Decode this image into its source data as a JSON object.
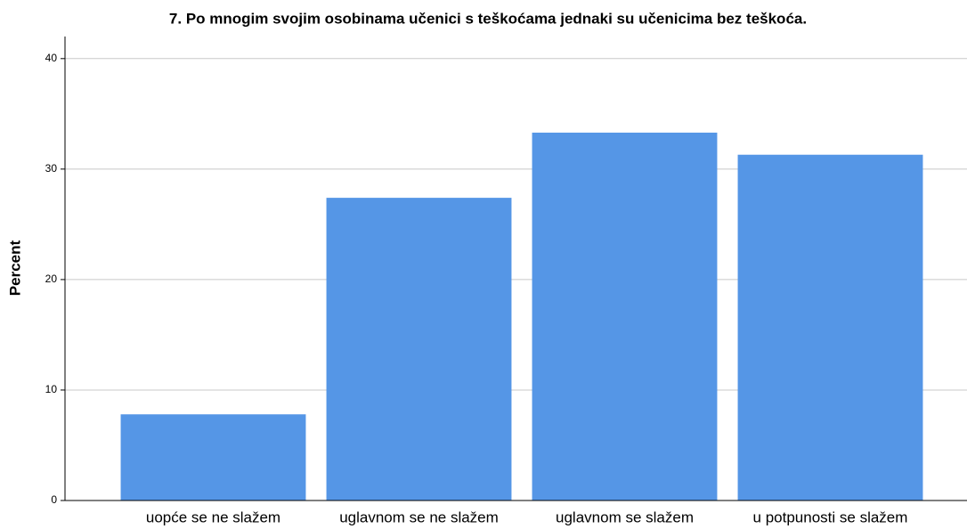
{
  "chart_data": {
    "type": "bar",
    "title": "7. Po mnogim svojim osobinama učenici s teškoćama jednaki su učenicima bez teškoća.",
    "y_label": "Percent",
    "categories": [
      "uopće se ne slažem",
      "uglavnom se ne slažem",
      "uglavnom se slažem",
      "u potpunosti se slažem"
    ],
    "values": [
      7.8,
      27.4,
      33.3,
      31.3
    ],
    "color": "#5596e6",
    "ylim": [
      0,
      42
    ],
    "yticks": [
      0,
      10,
      20,
      30,
      40
    ],
    "grid": true
  }
}
